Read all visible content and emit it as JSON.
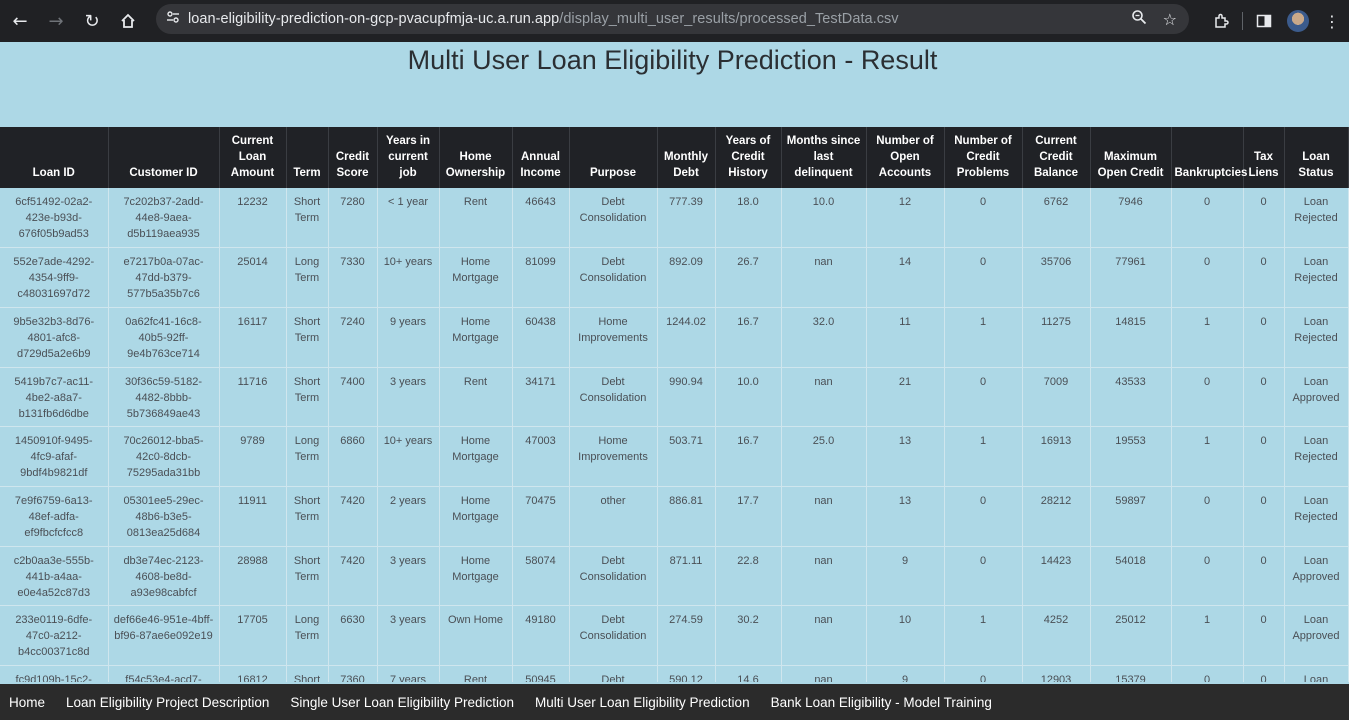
{
  "browser": {
    "url_host": "loan-eligibility-prediction-on-gcp-pvacupfmja-uc.a.run.app",
    "url_path": "/display_multi_user_results/processed_TestData.csv",
    "icons": [
      "back-icon",
      "forward-icon",
      "reload-icon",
      "home-icon",
      "site-info-icon",
      "zoom-icon",
      "star-icon",
      "extensions-icon",
      "side-panel-icon",
      "avatar",
      "menu-icon"
    ]
  },
  "page": {
    "title": "Multi User Loan Eligibility Prediction - Result"
  },
  "table": {
    "headers": [
      "Loan ID",
      "Customer ID",
      "Current Loan Amount",
      "Term",
      "Credit Score",
      "Years in current job",
      "Home Ownership",
      "Annual Income",
      "Purpose",
      "Monthly Debt",
      "Years of Credit History",
      "Months since last delinquent",
      "Number of Open Accounts",
      "Number of Credit Problems",
      "Current Credit Balance",
      "Maximum Open Credit",
      "Bankruptcies",
      "Tax Liens",
      "Loan Status"
    ],
    "rows": [
      [
        "6cf51492-02a2-423e-b93d-676f05b9ad53",
        "7c202b37-2add-44e8-9aea-d5b119aea935",
        "12232",
        "Short Term",
        "7280",
        "< 1 year",
        "Rent",
        "46643",
        "Debt Consolidation",
        "777.39",
        "18.0",
        "10.0",
        "12",
        "0",
        "6762",
        "7946",
        "0",
        "0",
        "Loan Rejected"
      ],
      [
        "552e7ade-4292-4354-9ff9-c48031697d72",
        "e7217b0a-07ac-47dd-b379-577b5a35b7c6",
        "25014",
        "Long Term",
        "7330",
        "10+ years",
        "Home Mortgage",
        "81099",
        "Debt Consolidation",
        "892.09",
        "26.7",
        "nan",
        "14",
        "0",
        "35706",
        "77961",
        "0",
        "0",
        "Loan Rejected"
      ],
      [
        "9b5e32b3-8d76-4801-afc8-d729d5a2e6b9",
        "0a62fc41-16c8-40b5-92ff-9e4b763ce714",
        "16117",
        "Short Term",
        "7240",
        "9 years",
        "Home Mortgage",
        "60438",
        "Home Improvements",
        "1244.02",
        "16.7",
        "32.0",
        "11",
        "1",
        "11275",
        "14815",
        "1",
        "0",
        "Loan Rejected"
      ],
      [
        "5419b7c7-ac11-4be2-a8a7-b131fb6d6dbe",
        "30f36c59-5182-4482-8bbb-5b736849ae43",
        "11716",
        "Short Term",
        "7400",
        "3 years",
        "Rent",
        "34171",
        "Debt Consolidation",
        "990.94",
        "10.0",
        "nan",
        "21",
        "0",
        "7009",
        "43533",
        "0",
        "0",
        "Loan Approved"
      ],
      [
        "1450910f-9495-4fc9-afaf-9bdf4b9821df",
        "70c26012-bba5-42c0-8dcb-75295ada31bb",
        "9789",
        "Long Term",
        "6860",
        "10+ years",
        "Home Mortgage",
        "47003",
        "Home Improvements",
        "503.71",
        "16.7",
        "25.0",
        "13",
        "1",
        "16913",
        "19553",
        "1",
        "0",
        "Loan Rejected"
      ],
      [
        "7e9f6759-6a13-48ef-adfa-ef9fbcfcfcc8",
        "05301ee5-29ec-48b6-b3e5-0813ea25d684",
        "11911",
        "Short Term",
        "7420",
        "2 years",
        "Home Mortgage",
        "70475",
        "other",
        "886.81",
        "17.7",
        "nan",
        "13",
        "0",
        "28212",
        "59897",
        "0",
        "0",
        "Loan Rejected"
      ],
      [
        "c2b0aa3e-555b-441b-a4aa-e0e4a52c87d3",
        "db3e74ec-2123-4608-be8d-a93e98cabfcf",
        "28988",
        "Short Term",
        "7420",
        "3 years",
        "Home Mortgage",
        "58074",
        "Debt Consolidation",
        "871.11",
        "22.8",
        "nan",
        "9",
        "0",
        "14423",
        "54018",
        "0",
        "0",
        "Loan Approved"
      ],
      [
        "233e0119-6dfe-47c0-a212-b4cc00371c8d",
        "def66e46-951e-4bff-bf96-87ae6e092e19",
        "17705",
        "Long Term",
        "6630",
        "3 years",
        "Own Home",
        "49180",
        "Debt Consolidation",
        "274.59",
        "30.2",
        "nan",
        "10",
        "1",
        "4252",
        "25012",
        "1",
        "0",
        "Loan Approved"
      ],
      [
        "fc9d109b-15c2-",
        "f54c53e4-acd7-",
        "16812",
        "Short",
        "7360",
        "7 years",
        "Rent",
        "50945",
        "Debt",
        "590.12",
        "14.6",
        "nan",
        "9",
        "0",
        "12903",
        "15379",
        "0",
        "0",
        "Loan"
      ]
    ]
  },
  "footer": {
    "links": [
      "Home",
      "Loan Eligibility Project Description",
      "Single User Loan Eligibility Prediction",
      "Multi User Loan Eligibility Prediction",
      "Bank Loan Eligibility - Model Training"
    ]
  }
}
